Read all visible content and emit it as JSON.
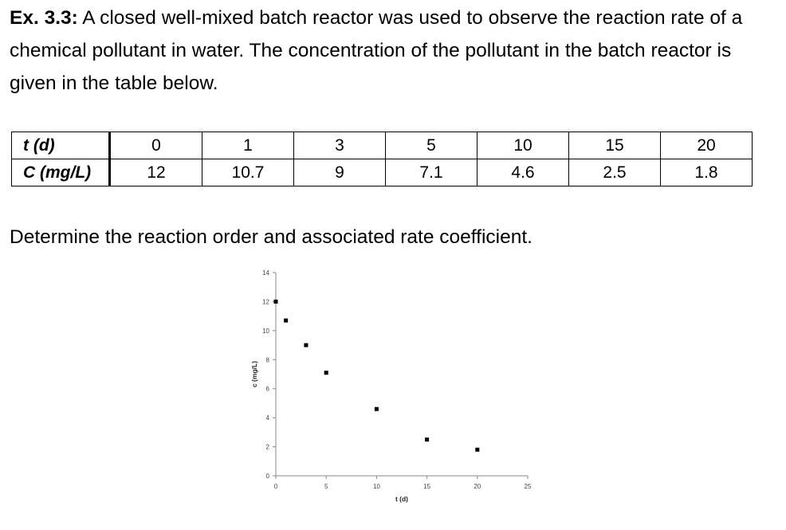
{
  "problem": {
    "label": "Ex. 3.3:",
    "text": "A closed well-mixed batch reactor was used to observe the reaction rate of a chemical pollutant in water.  The concentration of the pollutant in the batch reactor is given in the table below."
  },
  "table": {
    "row_t": {
      "header": "t (d)",
      "values": [
        "0",
        "1",
        "3",
        "5",
        "10",
        "15",
        "20"
      ]
    },
    "row_c": {
      "header": "C (mg/L)",
      "values": [
        "12",
        "10.7",
        "9",
        "7.1",
        "4.6",
        "2.5",
        "1.8"
      ]
    }
  },
  "question": "Determine the reaction order and associated rate coefficient.",
  "chart_data": {
    "type": "scatter",
    "x": [
      0,
      1,
      3,
      5,
      10,
      15,
      20
    ],
    "y": [
      12,
      10.7,
      9,
      7.1,
      4.6,
      2.5,
      1.8
    ],
    "xlabel": "t (d)",
    "ylabel": "c (mg/L)",
    "xlim": [
      0,
      25
    ],
    "ylim": [
      0,
      14
    ],
    "xticks": [
      0,
      5,
      10,
      15,
      20,
      25
    ],
    "yticks": [
      0,
      2,
      4,
      6,
      8,
      10,
      12,
      14
    ],
    "grid": false,
    "marker": "square",
    "marker_color": "#000000"
  }
}
